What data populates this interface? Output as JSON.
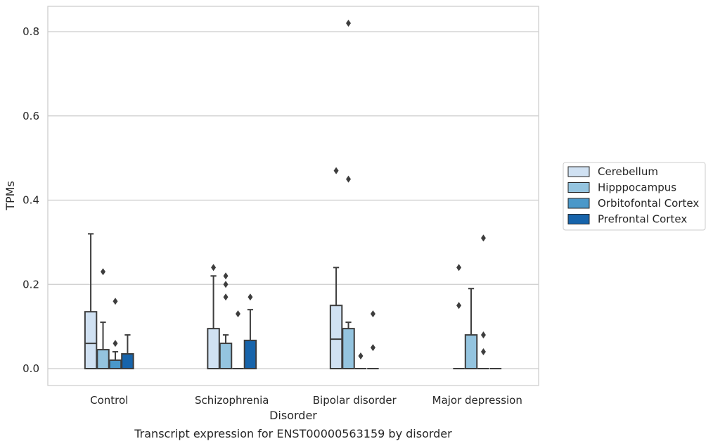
{
  "chart_data": {
    "type": "box",
    "title": "",
    "caption": "Transcript expression for ENST00000563159 by disorder",
    "xlabel": "Disorder",
    "ylabel": "TPMs",
    "ylim": [
      -0.04,
      0.86
    ],
    "yticks": [
      "0.0",
      "0.2",
      "0.4",
      "0.6",
      "0.8"
    ],
    "grid": "horizontal",
    "legend_position": "right",
    "categories": [
      "Control",
      "Schizophrenia",
      "Bipolar disorder",
      "Major depression"
    ],
    "series": [
      {
        "name": "Cerebellum",
        "color": "#d0e1f2",
        "boxes": [
          {
            "min": 0.0,
            "q1": 0.0,
            "median": 0.06,
            "q3": 0.135,
            "max": 0.32,
            "outliers": []
          },
          {
            "min": 0.0,
            "q1": 0.0,
            "median": 0.0,
            "q3": 0.095,
            "max": 0.22,
            "outliers": [
              0.24
            ]
          },
          {
            "min": 0.0,
            "q1": 0.0,
            "median": 0.07,
            "q3": 0.15,
            "max": 0.24,
            "outliers": [
              0.47
            ]
          },
          {
            "min": 0.0,
            "q1": 0.0,
            "median": 0.0,
            "q3": 0.0,
            "max": 0.0,
            "outliers": [
              0.15,
              0.24
            ]
          }
        ]
      },
      {
        "name": "Hipppocampus",
        "color": "#94c4df",
        "boxes": [
          {
            "min": 0.0,
            "q1": 0.0,
            "median": 0.0,
            "q3": 0.045,
            "max": 0.11,
            "outliers": [
              0.23
            ]
          },
          {
            "min": 0.0,
            "q1": 0.0,
            "median": 0.0,
            "q3": 0.06,
            "max": 0.08,
            "outliers": [
              0.17,
              0.2,
              0.22
            ]
          },
          {
            "min": 0.0,
            "q1": 0.0,
            "median": 0.0,
            "q3": 0.095,
            "max": 0.11,
            "outliers": [
              0.45,
              0.82
            ]
          },
          {
            "min": 0.0,
            "q1": 0.0,
            "median": 0.0,
            "q3": 0.08,
            "max": 0.19,
            "outliers": []
          }
        ]
      },
      {
        "name": "Orbitofontal Cortex",
        "color": "#4a98c9",
        "boxes": [
          {
            "min": 0.0,
            "q1": 0.0,
            "median": 0.0,
            "q3": 0.02,
            "max": 0.04,
            "outliers": [
              0.06,
              0.16
            ]
          },
          {
            "min": 0.0,
            "q1": 0.0,
            "median": 0.0,
            "q3": 0.0,
            "max": 0.0,
            "outliers": [
              0.13
            ]
          },
          {
            "min": 0.0,
            "q1": 0.0,
            "median": 0.0,
            "q3": 0.0,
            "max": 0.0,
            "outliers": [
              0.03
            ]
          },
          {
            "min": 0.0,
            "q1": 0.0,
            "median": 0.0,
            "q3": 0.0,
            "max": 0.0,
            "outliers": [
              0.04,
              0.08,
              0.31
            ]
          }
        ]
      },
      {
        "name": "Prefrontal Cortex",
        "color": "#1764ab",
        "boxes": [
          {
            "min": 0.0,
            "q1": 0.0,
            "median": 0.0,
            "q3": 0.035,
            "max": 0.08,
            "outliers": []
          },
          {
            "min": 0.0,
            "q1": 0.0,
            "median": 0.0,
            "q3": 0.067,
            "max": 0.14,
            "outliers": [
              0.17
            ]
          },
          {
            "min": 0.0,
            "q1": 0.0,
            "median": 0.0,
            "q3": 0.0,
            "max": 0.0,
            "outliers": [
              0.05,
              0.13
            ]
          },
          {
            "min": 0.0,
            "q1": 0.0,
            "median": 0.0,
            "q3": 0.0,
            "max": 0.0,
            "outliers": []
          }
        ]
      }
    ]
  }
}
